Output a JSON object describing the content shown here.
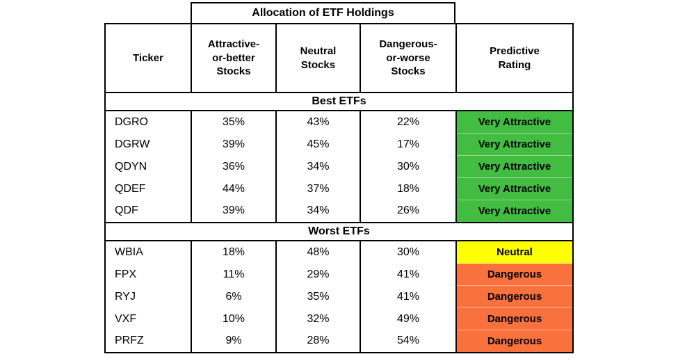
{
  "chart_data": {
    "type": "table",
    "supertitle": "Allocation of ETF Holdings",
    "columns": [
      {
        "id": "ticker",
        "label": "Ticker"
      },
      {
        "id": "attractive",
        "label": "Attractive-\nor-better\nStocks"
      },
      {
        "id": "neutral",
        "label": "Neutral\nStocks"
      },
      {
        "id": "dangerous",
        "label": "Dangerous-\nor-worse\nStocks"
      },
      {
        "id": "rating",
        "label": "Predictive\nRating"
      }
    ],
    "sections": [
      {
        "label": "Best ETFs",
        "rows": [
          {
            "ticker": "DGRO",
            "attractive": "35%",
            "neutral": "43%",
            "dangerous": "22%",
            "rating": "Very Attractive",
            "rating_key": "very_attractive"
          },
          {
            "ticker": "DGRW",
            "attractive": "39%",
            "neutral": "45%",
            "dangerous": "17%",
            "rating": "Very Attractive",
            "rating_key": "very_attractive"
          },
          {
            "ticker": "QDYN",
            "attractive": "36%",
            "neutral": "34%",
            "dangerous": "30%",
            "rating": "Very Attractive",
            "rating_key": "very_attractive"
          },
          {
            "ticker": "QDEF",
            "attractive": "44%",
            "neutral": "37%",
            "dangerous": "18%",
            "rating": "Very Attractive",
            "rating_key": "very_attractive"
          },
          {
            "ticker": "QDF",
            "attractive": "39%",
            "neutral": "34%",
            "dangerous": "26%",
            "rating": "Very Attractive",
            "rating_key": "very_attractive"
          }
        ]
      },
      {
        "label": "Worst ETFs",
        "rows": [
          {
            "ticker": "WBIA",
            "attractive": "18%",
            "neutral": "48%",
            "dangerous": "30%",
            "rating": "Neutral",
            "rating_key": "neutral"
          },
          {
            "ticker": "FPX",
            "attractive": "11%",
            "neutral": "29%",
            "dangerous": "41%",
            "rating": "Dangerous",
            "rating_key": "dangerous"
          },
          {
            "ticker": "RYJ",
            "attractive": "6%",
            "neutral": "35%",
            "dangerous": "41%",
            "rating": "Dangerous",
            "rating_key": "dangerous"
          },
          {
            "ticker": "VXF",
            "attractive": "10%",
            "neutral": "32%",
            "dangerous": "49%",
            "rating": "Dangerous",
            "rating_key": "dangerous"
          },
          {
            "ticker": "PRFZ",
            "attractive": "9%",
            "neutral": "28%",
            "dangerous": "54%",
            "rating": "Dangerous",
            "rating_key": "dangerous"
          }
        ]
      }
    ]
  },
  "colors": {
    "very_attractive": "#42BC41",
    "neutral": "#FFFF00",
    "dangerous": "#F9713D",
    "border": "#000000",
    "text": "#000000"
  }
}
